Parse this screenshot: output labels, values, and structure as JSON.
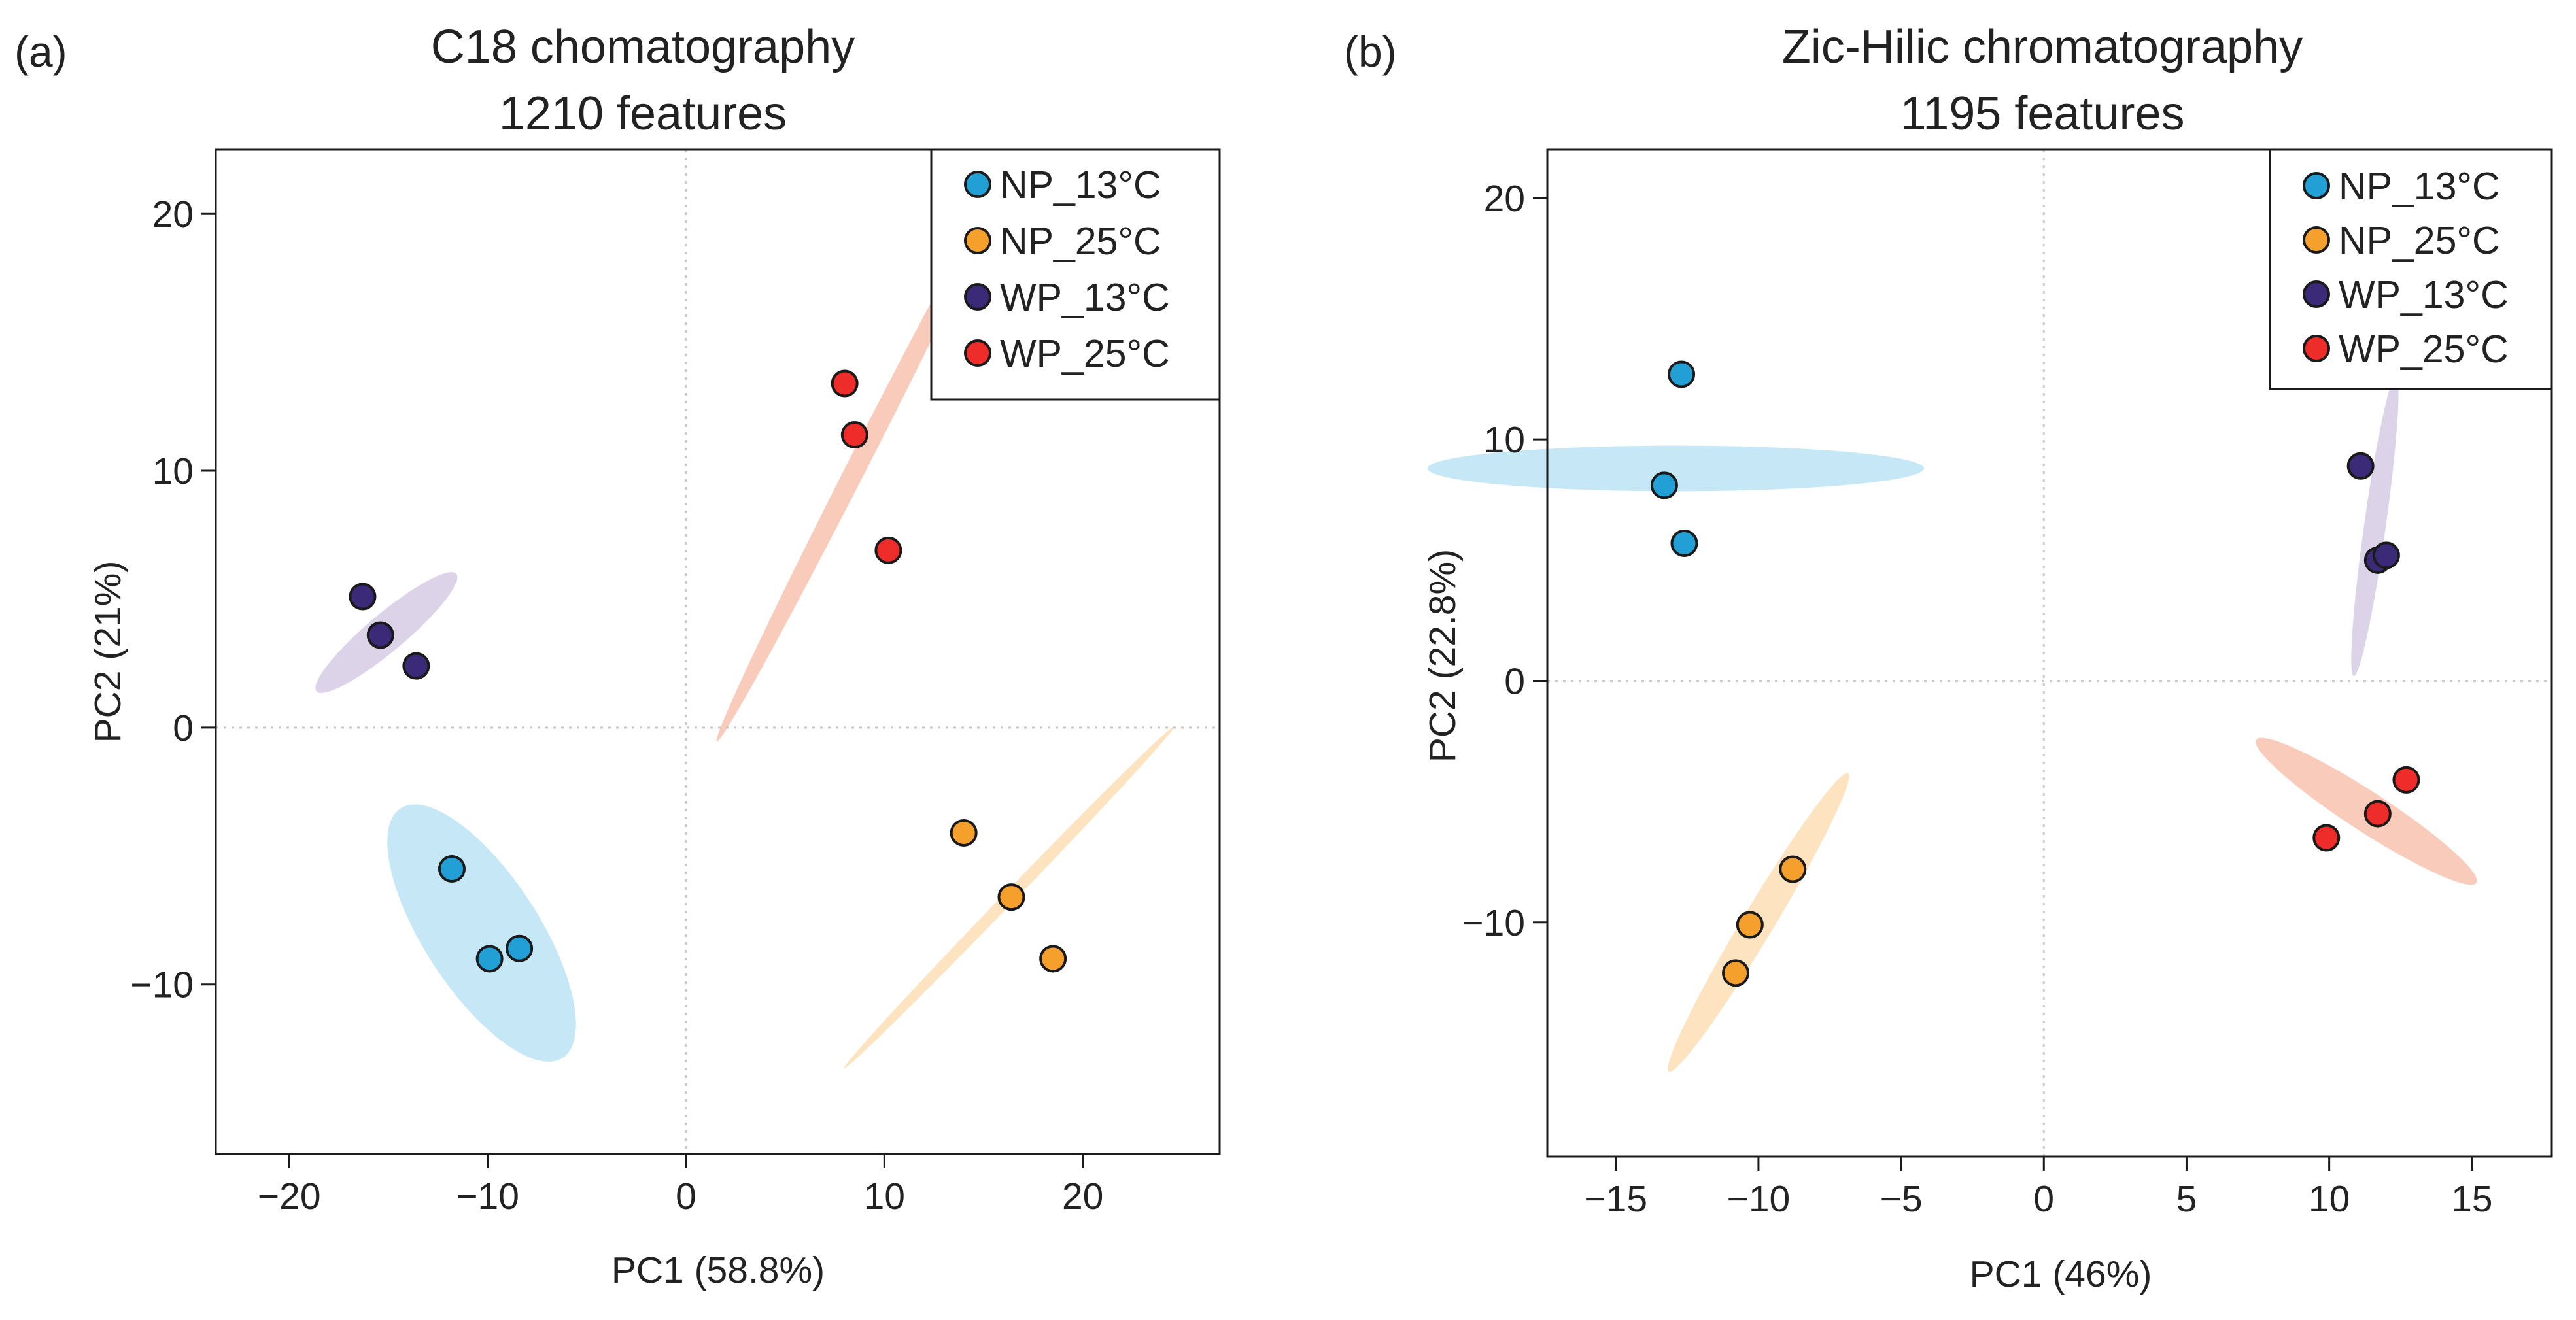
{
  "colors": {
    "NP_13": "#22a0d6",
    "NP_25": "#f5a02c",
    "WP_13": "#3a2a78",
    "WP_25": "#ee2d2a",
    "NP_13_ellipse": "#c6e7f5",
    "NP_25_ellipse": "#fde3c0",
    "WP_13_ellipse": "#dcd3e9",
    "WP_25_ellipse": "#f9cbbb"
  },
  "chart_data": [
    {
      "type": "scatter",
      "panel_label": "(a)",
      "title_line1": "C18 chomatography",
      "title_line2": "1210 features",
      "xlabel": "PC1 (58.8%)",
      "ylabel": "PC2 (21%)",
      "xlim": [
        -23.7,
        26.9
      ],
      "ylim": [
        -16.6,
        22.5
      ],
      "xticks": [
        -20,
        -10,
        0,
        10,
        20
      ],
      "yticks": [
        -10,
        0,
        10,
        20
      ],
      "xtick_labels": [
        "−20",
        "−10",
        "0",
        "10",
        "20"
      ],
      "ytick_labels": [
        "−10",
        "0",
        "10",
        "20"
      ],
      "legend_position": "top-right",
      "series": [
        {
          "name": "NP_13°C",
          "color_key": "NP_13",
          "points": [
            [
              -11.8,
              -5.5
            ],
            [
              -9.9,
              -9.0
            ],
            [
              -8.4,
              -8.6
            ]
          ],
          "ellipse": {
            "cx": -10.3,
            "cy": -8.0,
            "semi_major": 7.5,
            "semi_minor": 2.9,
            "angle_deg": 57
          }
        },
        {
          "name": "NP_25°C",
          "color_key": "NP_25",
          "points": [
            [
              14.0,
              -4.1
            ],
            [
              16.4,
              -6.6
            ],
            [
              18.5,
              -9.0
            ]
          ],
          "ellipse": {
            "cx": 16.3,
            "cy": -6.6,
            "semi_major": 12.0,
            "semi_minor": 0.3,
            "angle_deg": -46
          }
        },
        {
          "name": "WP_13°C",
          "color_key": "WP_13",
          "points": [
            [
              -16.3,
              5.1
            ],
            [
              -15.4,
              3.6
            ],
            [
              -13.6,
              2.4
            ]
          ],
          "ellipse": {
            "cx": -15.1,
            "cy": 3.7,
            "semi_major": 4.6,
            "semi_minor": 0.95,
            "angle_deg": -40
          }
        },
        {
          "name": "WP_25°C",
          "color_key": "WP_25",
          "points": [
            [
              8.0,
              13.4
            ],
            [
              8.5,
              11.4
            ],
            [
              10.2,
              6.9
            ]
          ],
          "ellipse": {
            "cx": 8.9,
            "cy": 10.6,
            "semi_major": 16.2,
            "semi_minor": 0.5,
            "angle_deg": -63
          }
        }
      ]
    },
    {
      "type": "scatter",
      "panel_label": "(b)",
      "title_line1": "Zic-Hilic chromatography",
      "title_line2": "1195 features",
      "xlabel": "PC1 (46%)",
      "ylabel": "PC2 (22.8%)",
      "xlim": [
        -17.4,
        17.8
      ],
      "ylim": [
        -19.7,
        22.0
      ],
      "xticks": [
        -15,
        -10,
        -5,
        0,
        5,
        10,
        15
      ],
      "yticks": [
        -10,
        0,
        10,
        20
      ],
      "xtick_labels": [
        "−15",
        "−10",
        "−5",
        "0",
        "5",
        "10",
        "15"
      ],
      "ytick_labels": [
        "−10",
        "0",
        "10",
        "20"
      ],
      "legend_position": "top-right",
      "series": [
        {
          "name": "NP_13°C",
          "color_key": "NP_13",
          "points": [
            [
              -12.7,
              12.7
            ],
            [
              -13.3,
              8.1
            ],
            [
              -12.6,
              5.7
            ]
          ],
          "ellipse": {
            "cx": -12.9,
            "cy": 8.8,
            "semi_major": 8.7,
            "semi_minor": 0.8,
            "angle_deg": 0
          }
        },
        {
          "name": "NP_25°C",
          "color_key": "NP_25",
          "points": [
            [
              -8.8,
              -7.8
            ],
            [
              -10.3,
              -10.1
            ],
            [
              -10.8,
              -12.1
            ]
          ],
          "ellipse": {
            "cx": -10.0,
            "cy": -10.0,
            "semi_major": 6.1,
            "semi_minor": 0.55,
            "angle_deg": -59
          }
        },
        {
          "name": "WP_13°C",
          "color_key": "WP_13",
          "points": [
            [
              11.1,
              8.9
            ],
            [
              11.7,
              5.0
            ],
            [
              12.0,
              5.2
            ]
          ],
          "ellipse": {
            "cx": 11.6,
            "cy": 6.4,
            "semi_major": 5.3,
            "semi_minor": 0.38,
            "angle_deg": -82
          }
        },
        {
          "name": "WP_25°C",
          "color_key": "WP_25",
          "points": [
            [
              9.9,
              -6.5
            ],
            [
              11.7,
              -5.5
            ],
            [
              12.7,
              -4.1
            ]
          ],
          "ellipse": {
            "cx": 11.3,
            "cy": -5.4,
            "semi_major": 4.6,
            "semi_minor": 0.7,
            "angle_deg": 33
          }
        }
      ]
    }
  ]
}
